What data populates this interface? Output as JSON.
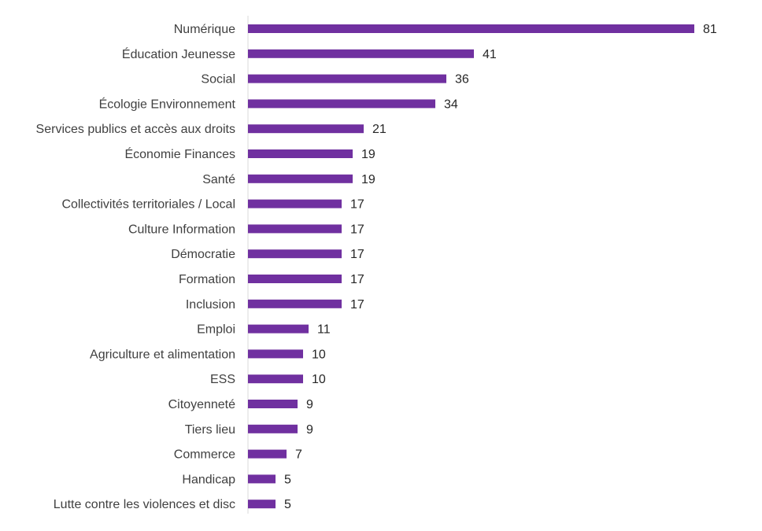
{
  "chart_data": {
    "type": "bar",
    "orientation": "horizontal",
    "title": "",
    "xlabel": "",
    "ylabel": "",
    "categories": [
      "Numérique",
      "Éducation Jeunesse",
      "Social",
      "Écologie Environnement",
      "Services publics et accès aux droits",
      "Économie Finances",
      "Santé",
      "Collectivités territoriales / Local",
      "Culture Information",
      "Démocratie ",
      "Formation",
      "Inclusion",
      "Emploi",
      "Agriculture et alimentation",
      "ESS",
      "Citoyenneté",
      "Tiers lieu",
      "Commerce",
      "Handicap",
      "Lutte contre les violences et disc"
    ],
    "values": [
      81,
      41,
      36,
      34,
      21,
      19,
      19,
      17,
      17,
      17,
      17,
      17,
      11,
      10,
      10,
      9,
      9,
      7,
      5,
      5
    ],
    "xlim": [
      0,
      81
    ],
    "bar_color": "#7030A0",
    "axis_color": "#D9D9D9",
    "data_labels": true,
    "grid": false,
    "legend": "none"
  }
}
